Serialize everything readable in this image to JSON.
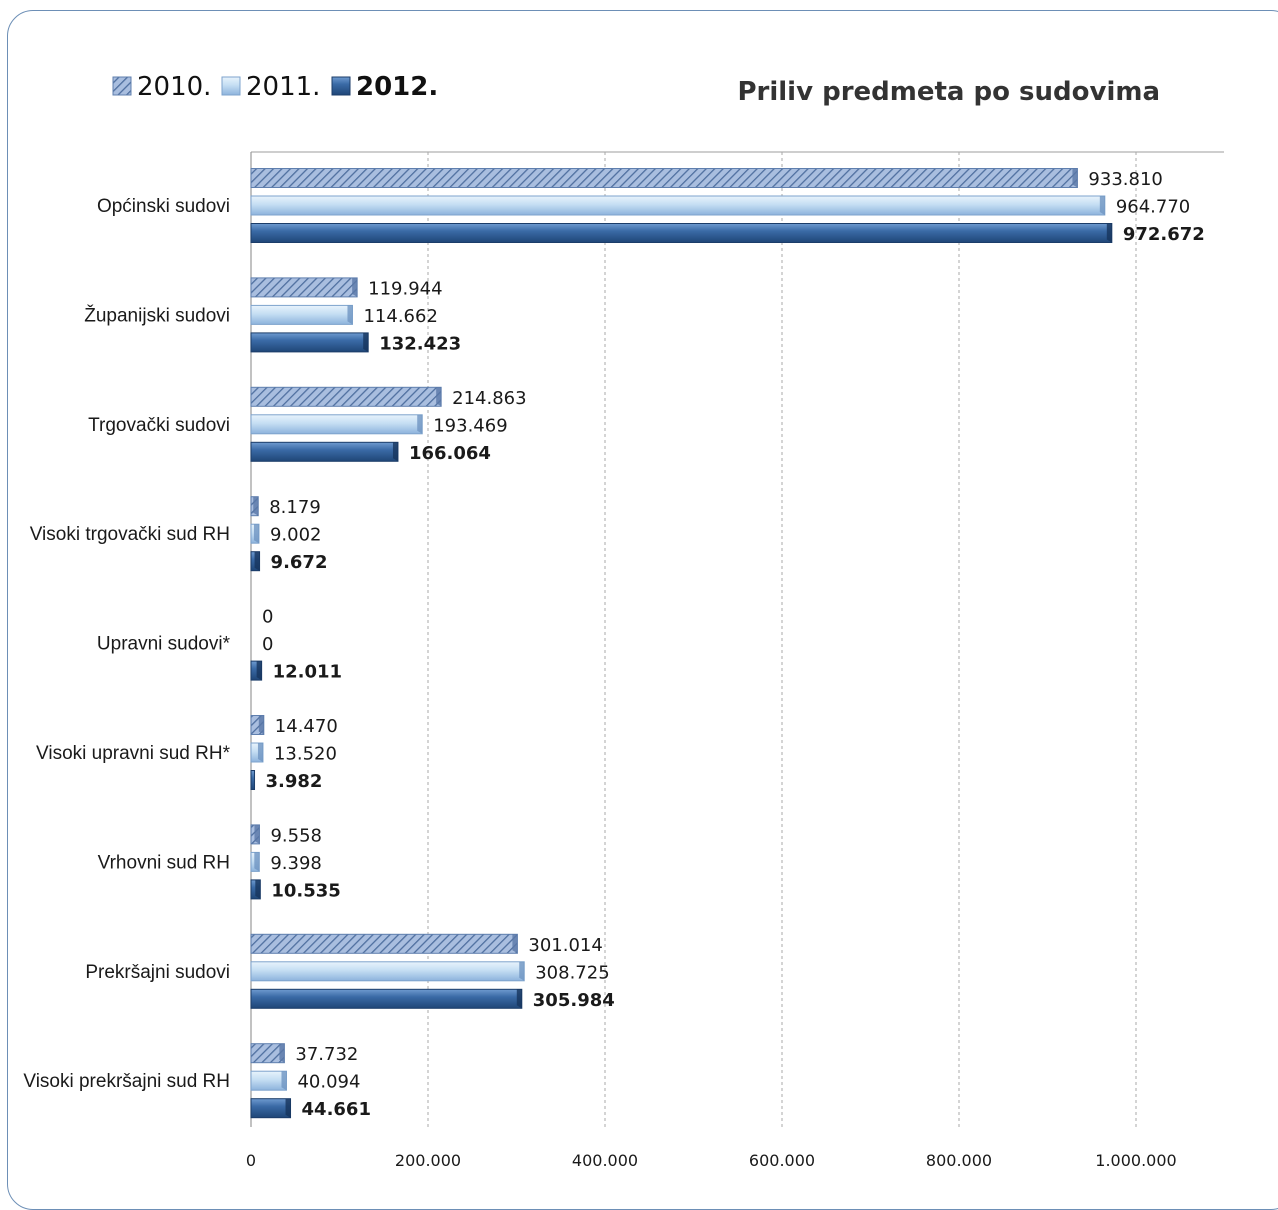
{
  "chart_data": {
    "type": "bar",
    "orientation": "horizontal",
    "title": "Priliv predmeta po sudovima",
    "categories": [
      "Općinski sudovi",
      "Županijski sudovi",
      "Trgovački sudovi",
      "Visoki trgovački sud RH",
      "Upravni sudovi*",
      "Visoki upravni sud RH*",
      "Vrhovni sud RH",
      "Prekršajni sudovi",
      "Visoki prekršajni sud RH"
    ],
    "series": [
      {
        "name": "2010.",
        "values": [
          933810,
          119944,
          214863,
          8179,
          0,
          14470,
          9558,
          301014,
          37732
        ],
        "labels": [
          "933.810",
          "119.944",
          "214.863",
          "8.179",
          "0",
          "14.470",
          "9.558",
          "301.014",
          "37.732"
        ]
      },
      {
        "name": "2011.",
        "values": [
          964770,
          114662,
          193469,
          9002,
          0,
          13520,
          9398,
          308725,
          40094
        ],
        "labels": [
          "964.770",
          "114.662",
          "193.469",
          "9.002",
          "0",
          "13.520",
          "9.398",
          "308.725",
          "40.094"
        ]
      },
      {
        "name": "2012.",
        "values": [
          972672,
          132423,
          166064,
          9672,
          12011,
          3982,
          10535,
          305984,
          44661
        ],
        "labels": [
          "972.672",
          "132.423",
          "166.064",
          "9.672",
          "12.011",
          "3.982",
          "10.535",
          "305.984",
          "44.661"
        ]
      }
    ],
    "xlim": [
      0,
      1100000
    ],
    "xticks": [
      0,
      200000,
      400000,
      600000,
      800000,
      1000000
    ],
    "xtick_labels": [
      "0",
      "200.000",
      "400.000",
      "600.000",
      "800.000",
      "1.000.000"
    ],
    "grid": true,
    "legend_position": "top-left",
    "colors": {
      "2010.": "#8fa8d0",
      "2011.": "#b8d4ee",
      "2012.": "#2f5f96"
    }
  }
}
